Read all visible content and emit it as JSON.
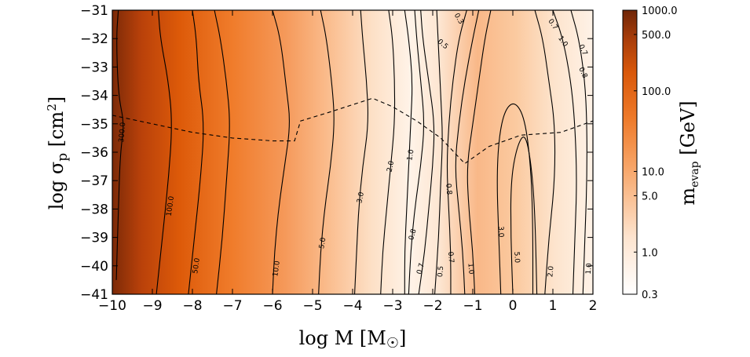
{
  "chart_data": {
    "type": "heatmap",
    "title": "",
    "xlabel": "log M [M☉]",
    "ylabel": "log σp [cm²]",
    "xlim": [
      -10,
      2
    ],
    "ylim": [
      -41,
      -31
    ],
    "x_ticks": [
      -10,
      -9,
      -8,
      -7,
      -6,
      -5,
      -4,
      -3,
      -2,
      -1,
      0,
      1,
      2
    ],
    "x_tick_labels": [
      "−10",
      "−9",
      "−8",
      "−7",
      "−6",
      "−5",
      "−4",
      "−3",
      "−2",
      "−1",
      "0",
      "1",
      "2"
    ],
    "y_ticks": [
      -31,
      -32,
      -33,
      -34,
      -35,
      -36,
      -37,
      -38,
      -39,
      -40,
      -41
    ],
    "y_tick_labels": [
      "−31",
      "−32",
      "−33",
      "−34",
      "−35",
      "−36",
      "−37",
      "−38",
      "−39",
      "−40",
      "−41"
    ],
    "colorbar": {
      "label": "m_evap [GeV]",
      "scale": "log",
      "range": [
        0.3,
        1000.0
      ],
      "ticks": [
        1000.0,
        500.0,
        100.0,
        10.0,
        5.0,
        1.0,
        0.3
      ],
      "tick_labels": [
        "1000.0",
        "500.0",
        "100.0",
        "10.0",
        "5.0",
        "1.0",
        "0.3"
      ],
      "colors": [
        "#ffffff",
        "#fbd3b4",
        "#f6a36a",
        "#ee7b2e",
        "#dd5a09",
        "#a83d0a",
        "#7c2a08"
      ]
    },
    "contour_lines": [
      {
        "level": "300.0",
        "points": [
          [
            -9.9,
            -40.5
          ],
          [
            -9.85,
            -38
          ],
          [
            -9.8,
            -36
          ],
          [
            -9.7,
            -35
          ],
          [
            -9.85,
            -34
          ],
          [
            -9.9,
            -32
          ],
          [
            -9.85,
            -31
          ]
        ]
      },
      {
        "level": "100.0",
        "points": [
          [
            -8.9,
            -41
          ],
          [
            -8.75,
            -39
          ],
          [
            -8.6,
            -37
          ],
          [
            -8.5,
            -35
          ],
          [
            -8.6,
            -33.5
          ],
          [
            -8.8,
            -32
          ],
          [
            -8.85,
            -31
          ]
        ]
      },
      {
        "level": "50.0",
        "points": [
          [
            -8.1,
            -41
          ],
          [
            -7.95,
            -39
          ],
          [
            -7.8,
            -37
          ],
          [
            -7.7,
            -35
          ],
          [
            -7.85,
            -33.5
          ],
          [
            -7.9,
            -32
          ],
          [
            -8.0,
            -31
          ]
        ]
      },
      {
        "level": "20.0",
        "points": [
          [
            -7.4,
            -41
          ],
          [
            -7.25,
            -39
          ],
          [
            -7.15,
            -37
          ],
          [
            -7.05,
            -35
          ],
          [
            -7.15,
            -33.5
          ],
          [
            -7.3,
            -32
          ],
          [
            -7.45,
            -31
          ]
        ]
      },
      {
        "level": "10.0",
        "points": [
          [
            -6.0,
            -41
          ],
          [
            -5.95,
            -39.5
          ],
          [
            -5.85,
            -38
          ],
          [
            -5.7,
            -36.5
          ],
          [
            -5.55,
            -35
          ],
          [
            -5.65,
            -33.8
          ],
          [
            -5.8,
            -32
          ],
          [
            -6.0,
            -31
          ]
        ]
      },
      {
        "level": "5.0",
        "points": [
          [
            -4.85,
            -41
          ],
          [
            -4.8,
            -39.5
          ],
          [
            -4.7,
            -38
          ],
          [
            -4.55,
            -36.5
          ],
          [
            -4.45,
            -35
          ],
          [
            -4.5,
            -33.8
          ],
          [
            -4.65,
            -32
          ],
          [
            -4.8,
            -31
          ]
        ]
      },
      {
        "level": "3.0",
        "points": [
          [
            -3.95,
            -41
          ],
          [
            -3.9,
            -39.5
          ],
          [
            -3.85,
            -38
          ],
          [
            -3.75,
            -36.5
          ],
          [
            -3.6,
            -35
          ],
          [
            -3.65,
            -33.5
          ],
          [
            -3.75,
            -32
          ],
          [
            -3.8,
            -31
          ]
        ]
      },
      {
        "level": "2.0",
        "points": [
          [
            -3.3,
            -41
          ],
          [
            -3.25,
            -39.5
          ],
          [
            -3.15,
            -38
          ],
          [
            -3.05,
            -36.5
          ],
          [
            -2.95,
            -35
          ],
          [
            -2.95,
            -33.5
          ],
          [
            -3.0,
            -32
          ],
          [
            -3.1,
            -31
          ]
        ]
      },
      {
        "level": "1.0",
        "points": [
          [
            -2.7,
            -41
          ],
          [
            -2.7,
            -39.5
          ],
          [
            -2.65,
            -38
          ],
          [
            -2.6,
            -36.5
          ],
          [
            -2.55,
            -35
          ],
          [
            -2.5,
            -33.5
          ],
          [
            -2.6,
            -32
          ],
          [
            -2.7,
            -31
          ]
        ]
      },
      {
        "level": "0.8",
        "points": [
          [
            -2.6,
            -41
          ],
          [
            -2.55,
            -39.5
          ],
          [
            -2.45,
            -38
          ],
          [
            -2.3,
            -36.5
          ],
          [
            -2.2,
            -35
          ],
          [
            -2.3,
            -33.5
          ],
          [
            -2.4,
            -32
          ],
          [
            -2.45,
            -31
          ]
        ]
      },
      {
        "level": "0.7",
        "points": [
          [
            -2.35,
            -41
          ],
          [
            -2.2,
            -39.5
          ],
          [
            -2.1,
            -38
          ],
          [
            -2.0,
            -36.5
          ],
          [
            -1.95,
            -35
          ],
          [
            -2.1,
            -33.5
          ],
          [
            -2.25,
            -32
          ],
          [
            -2.3,
            -31
          ]
        ]
      },
      {
        "level": "0.5",
        "points": [
          [
            -1.95,
            -41
          ],
          [
            -1.85,
            -39
          ],
          [
            -1.8,
            -37
          ],
          [
            -1.75,
            -35.5
          ],
          [
            -1.8,
            -34
          ],
          [
            -1.85,
            -32.5
          ],
          [
            -1.9,
            -31
          ]
        ]
      },
      {
        "level": "0.7",
        "points": [
          [
            -1.55,
            -41
          ],
          [
            -1.55,
            -39.5
          ],
          [
            -1.6,
            -38
          ],
          [
            -1.65,
            -36.5
          ],
          [
            -1.6,
            -35
          ],
          [
            -1.5,
            -33.5
          ],
          [
            -1.35,
            -32
          ],
          [
            -1.15,
            -31
          ]
        ]
      },
      {
        "level": "0.8",
        "points": [
          [
            -1.2,
            -41
          ],
          [
            -1.25,
            -39.5
          ],
          [
            -1.35,
            -38
          ],
          [
            -1.45,
            -36.5
          ],
          [
            -1.35,
            -35
          ],
          [
            -1.2,
            -33.5
          ],
          [
            -1.0,
            -32
          ],
          [
            -0.85,
            -31
          ]
        ]
      },
      {
        "level": "1.0",
        "points": [
          [
            -0.95,
            -41
          ],
          [
            -1.0,
            -39.5
          ],
          [
            -1.1,
            -38
          ],
          [
            -1.15,
            -36.5
          ],
          [
            -1.0,
            -35
          ],
          [
            -0.85,
            -33.5
          ],
          [
            -0.7,
            -32
          ],
          [
            -0.55,
            -31
          ]
        ]
      },
      {
        "level": "3.0",
        "points": [
          [
            -0.3,
            -41
          ],
          [
            -0.35,
            -39
          ],
          [
            -0.4,
            -37
          ],
          [
            -0.35,
            -35.5
          ],
          [
            -0.2,
            -34.5
          ],
          [
            0.05,
            -34.2
          ],
          [
            0.3,
            -34.8
          ],
          [
            0.45,
            -36.5
          ],
          [
            0.5,
            -38.5
          ],
          [
            0.5,
            -41
          ]
        ]
      },
      {
        "level": "5.0",
        "points": [
          [
            0.0,
            -41
          ],
          [
            -0.05,
            -39
          ],
          [
            -0.05,
            -37
          ],
          [
            0.1,
            -35.8
          ],
          [
            0.3,
            -35.3
          ],
          [
            0.45,
            -36.3
          ],
          [
            0.55,
            -38
          ],
          [
            0.6,
            -41
          ]
        ]
      },
      {
        "level": "2.0",
        "points": [
          [
            0.8,
            -41
          ],
          [
            0.9,
            -39
          ],
          [
            1.05,
            -37
          ],
          [
            1.05,
            -35
          ],
          [
            0.9,
            -33.5
          ],
          [
            0.75,
            -32
          ],
          [
            0.55,
            -31
          ]
        ]
      },
      {
        "level": "1.0",
        "points": [
          [
            1.5,
            -41
          ],
          [
            1.55,
            -39
          ],
          [
            1.6,
            -37
          ],
          [
            1.55,
            -35
          ],
          [
            1.45,
            -33.5
          ],
          [
            1.25,
            -32
          ],
          [
            1.0,
            -31
          ]
        ]
      },
      {
        "level": "0.7",
        "points": [
          [
            1.75,
            -41
          ],
          [
            1.8,
            -39
          ],
          [
            1.85,
            -37
          ],
          [
            1.85,
            -35
          ],
          [
            1.8,
            -33.5
          ],
          [
            1.65,
            -32
          ],
          [
            1.45,
            -31
          ]
        ]
      }
    ],
    "contour_labels": [
      {
        "text": "300.0",
        "x": -9.75,
        "y": -35.3,
        "rotate": -85
      },
      {
        "text": "100.0",
        "x": -8.55,
        "y": -37.9,
        "rotate": -82
      },
      {
        "text": "50.0",
        "x": -7.9,
        "y": -40.0,
        "rotate": -82
      },
      {
        "text": "10.0",
        "x": -5.9,
        "y": -40.1,
        "rotate": -82
      },
      {
        "text": "5.0",
        "x": -4.75,
        "y": -39.2,
        "rotate": -80
      },
      {
        "text": "3.0",
        "x": -3.8,
        "y": -37.6,
        "rotate": -78
      },
      {
        "text": "2.0",
        "x": -3.05,
        "y": -36.5,
        "rotate": -78
      },
      {
        "text": "1.0",
        "x": -2.55,
        "y": -36.1,
        "rotate": -80
      },
      {
        "text": "0.8",
        "x": -2.5,
        "y": -38.9,
        "rotate": -75
      },
      {
        "text": "0.7",
        "x": -2.3,
        "y": -40.1,
        "rotate": -75
      },
      {
        "text": "0.5",
        "x": -1.8,
        "y": -40.2,
        "rotate": -85
      },
      {
        "text": "0.7",
        "x": -1.55,
        "y": -39.7,
        "rotate": 85
      },
      {
        "text": "0.8",
        "x": -1.6,
        "y": -37.3,
        "rotate": 85
      },
      {
        "text": "1.0",
        "x": -1.05,
        "y": -40.1,
        "rotate": 85
      },
      {
        "text": "0.5",
        "x": -1.75,
        "y": -32.2,
        "rotate": 40
      },
      {
        "text": "0.3",
        "x": -1.35,
        "y": -31.3,
        "rotate": 60
      },
      {
        "text": "3.0",
        "x": -0.3,
        "y": -38.8,
        "rotate": 87
      },
      {
        "text": "5.0",
        "x": 0.1,
        "y": -39.7,
        "rotate": 87
      },
      {
        "text": "2.0",
        "x": 0.95,
        "y": -40.2,
        "rotate": -85
      },
      {
        "text": "1.0",
        "x": 1.9,
        "y": -40.1,
        "rotate": -85
      },
      {
        "text": "0.7",
        "x": 1.0,
        "y": -31.5,
        "rotate": 55
      },
      {
        "text": "1.0",
        "x": 1.25,
        "y": -32.1,
        "rotate": 55
      },
      {
        "text": "0.7",
        "x": 1.75,
        "y": -32.4,
        "rotate": 65
      },
      {
        "text": "0.8",
        "x": 1.75,
        "y": -33.2,
        "rotate": 65
      }
    ],
    "dashed_boundary": [
      [
        -10,
        -34.7
      ],
      [
        -9,
        -35.0
      ],
      [
        -8,
        -35.3
      ],
      [
        -7,
        -35.5
      ],
      [
        -6,
        -35.6
      ],
      [
        -5.45,
        -35.6
      ],
      [
        -5.3,
        -34.9
      ],
      [
        -4.6,
        -34.6
      ],
      [
        -3.5,
        -34.1
      ],
      [
        -3.0,
        -34.4
      ],
      [
        -2.4,
        -34.9
      ],
      [
        -1.8,
        -35.5
      ],
      [
        -1.2,
        -36.4
      ],
      [
        -0.6,
        -35.8
      ],
      [
        0.2,
        -35.4
      ],
      [
        1.2,
        -35.3
      ],
      [
        2.0,
        -34.9
      ]
    ]
  }
}
